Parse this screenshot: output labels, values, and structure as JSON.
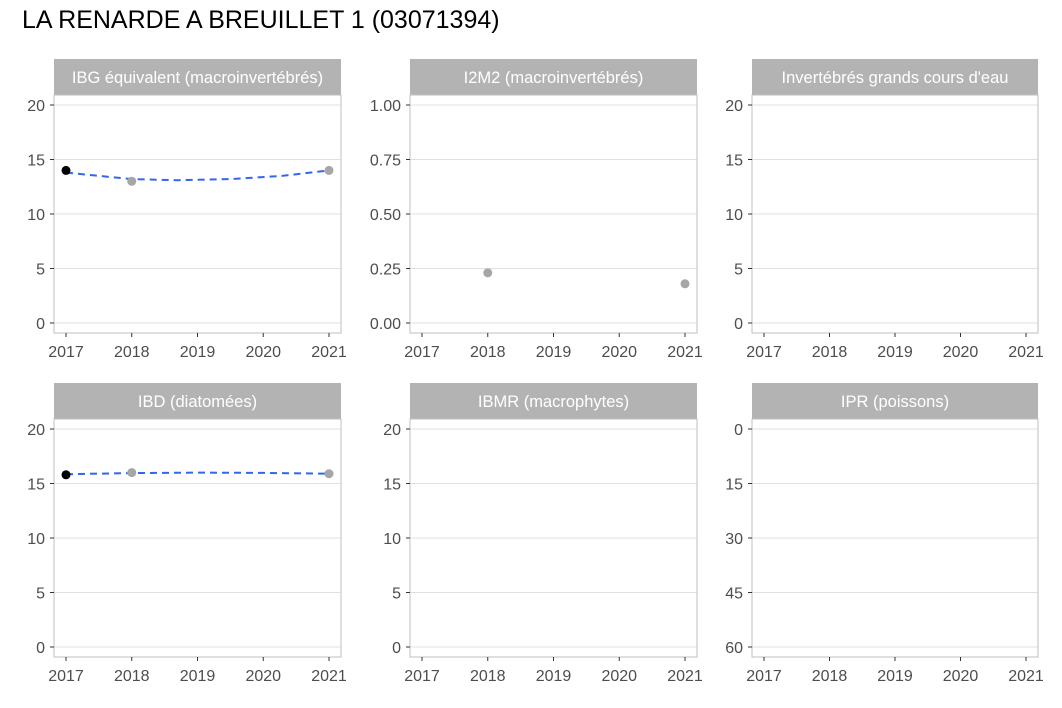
{
  "title": "LA RENARDE A BREUILLET 1 (03071394)",
  "colors": {
    "strip": "#b3b3b3",
    "panel_border": "#bfbfbf",
    "grid": "#e0e0e0",
    "first_point": "#000000",
    "other_points": "#a6a6a6",
    "trend_line": "#3366ee"
  },
  "chart_data": [
    {
      "type": "scatter",
      "title": "IBG équivalent (macroinvertébrés)",
      "x_ticks": [
        "2017",
        "2018",
        "2019",
        "2020",
        "2021"
      ],
      "xlim": [
        2017,
        2021
      ],
      "y_ticks": [
        "0",
        "5",
        "10",
        "15",
        "20"
      ],
      "ylim": [
        0,
        20
      ],
      "y_reversed": false,
      "points": [
        {
          "x": 2017,
          "y": 14
        },
        {
          "x": 2018,
          "y": 13
        },
        {
          "x": 2021,
          "y": 14
        }
      ],
      "trend": [
        {
          "x": 2017,
          "y": 13.8
        },
        {
          "x": 2018,
          "y": 13.2
        },
        {
          "x": 2018.7,
          "y": 13.1
        },
        {
          "x": 2019.5,
          "y": 13.2
        },
        {
          "x": 2020.3,
          "y": 13.5
        },
        {
          "x": 2021,
          "y": 14
        }
      ],
      "grid": true
    },
    {
      "type": "scatter",
      "title": "I2M2 (macroinvertébrés)",
      "x_ticks": [
        "2017",
        "2018",
        "2019",
        "2020",
        "2021"
      ],
      "xlim": [
        2017,
        2021
      ],
      "y_ticks": [
        "0.00",
        "0.25",
        "0.50",
        "0.75",
        "1.00"
      ],
      "ylim": [
        0,
        1
      ],
      "y_reversed": false,
      "points": [
        {
          "x": 2018,
          "y": 0.23
        },
        {
          "x": 2021,
          "y": 0.18
        }
      ],
      "trend": [],
      "grid": true
    },
    {
      "type": "scatter",
      "title": "Invertébrés grands cours d'eau",
      "x_ticks": [
        "2017",
        "2018",
        "2019",
        "2020",
        "2021"
      ],
      "xlim": [
        2017,
        2021
      ],
      "y_ticks": [
        "0",
        "5",
        "10",
        "15",
        "20"
      ],
      "ylim": [
        0,
        20
      ],
      "y_reversed": false,
      "points": [],
      "trend": [],
      "grid": true
    },
    {
      "type": "scatter",
      "title": "IBD (diatomées)",
      "x_ticks": [
        "2017",
        "2018",
        "2019",
        "2020",
        "2021"
      ],
      "xlim": [
        2017,
        2021
      ],
      "y_ticks": [
        "0",
        "5",
        "10",
        "15",
        "20"
      ],
      "ylim": [
        0,
        20
      ],
      "y_reversed": false,
      "points": [
        {
          "x": 2017,
          "y": 15.8
        },
        {
          "x": 2018,
          "y": 16
        },
        {
          "x": 2021,
          "y": 15.9
        }
      ],
      "trend": [
        {
          "x": 2017,
          "y": 15.85
        },
        {
          "x": 2018,
          "y": 15.95
        },
        {
          "x": 2019,
          "y": 16
        },
        {
          "x": 2020,
          "y": 15.97
        },
        {
          "x": 2021,
          "y": 15.9
        }
      ],
      "grid": true
    },
    {
      "type": "scatter",
      "title": "IBMR (macrophytes)",
      "x_ticks": [
        "2017",
        "2018",
        "2019",
        "2020",
        "2021"
      ],
      "xlim": [
        2017,
        2021
      ],
      "y_ticks": [
        "0",
        "5",
        "10",
        "15",
        "20"
      ],
      "ylim": [
        0,
        20
      ],
      "y_reversed": false,
      "points": [],
      "trend": [],
      "grid": true
    },
    {
      "type": "scatter",
      "title": "IPR (poissons)",
      "x_ticks": [
        "2017",
        "2018",
        "2019",
        "2020",
        "2021"
      ],
      "xlim": [
        2017,
        2021
      ],
      "y_ticks": [
        "60",
        "45",
        "30",
        "15",
        "0"
      ],
      "ylim": [
        60,
        0
      ],
      "y_reversed": true,
      "points": [],
      "trend": [],
      "grid": true
    }
  ]
}
